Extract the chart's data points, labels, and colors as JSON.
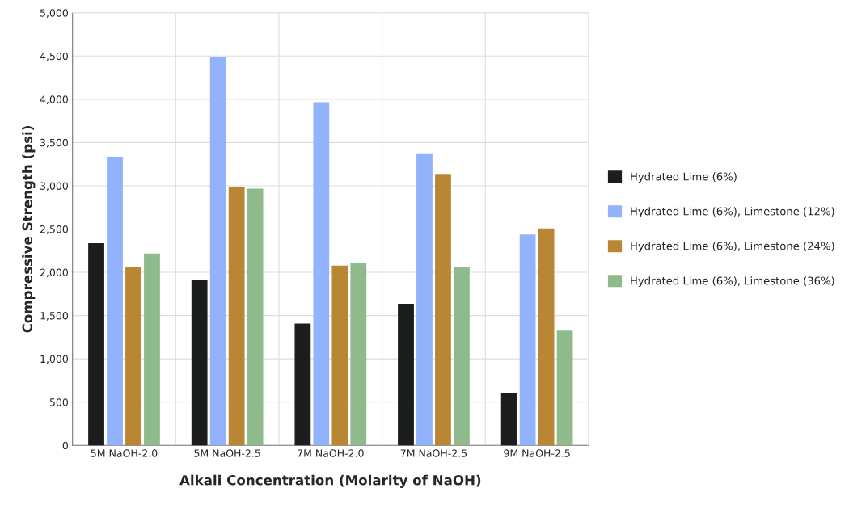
{
  "chart_data": {
    "type": "bar",
    "xlabel": "Alkali Concentration (Molarity of NaOH)",
    "ylabel": "Compressive Strength (psi)",
    "categories": [
      "5M NaOH-2.0",
      "5M NaOH-2.5",
      "7M NaOH-2.0",
      "7M NaOH-2.5",
      "9M NaOH-2.5"
    ],
    "series": [
      {
        "name": "Hydrated Lime (6%)",
        "color": "#1b1e1c",
        "values": [
          2330,
          1900,
          1400,
          1630,
          600
        ]
      },
      {
        "name": "Hydrated Lime (6%), Limestone (12%)",
        "color": "#92b2fb",
        "values": [
          3330,
          4480,
          3960,
          3370,
          2430
        ]
      },
      {
        "name": "Hydrated Lime (6%), Limestone (24%)",
        "color": "#b98733",
        "values": [
          2050,
          2980,
          2070,
          3130,
          2500
        ]
      },
      {
        "name": "Hydrated Lime (6%), Limestone (36%)",
        "color": "#8eba8c",
        "values": [
          2210,
          2960,
          2100,
          2050,
          1320
        ]
      }
    ],
    "ylim": [
      0,
      5000
    ],
    "yticks": [
      0,
      {
        "value": 500,
        "label": "500"
      },
      {
        "value": 1000,
        "label": "1,000"
      },
      {
        "value": 1500,
        "label": "1,500"
      },
      {
        "value": 2000,
        "label": "2,000"
      },
      {
        "value": 2500,
        "label": "2,500"
      },
      {
        "value": 3000,
        "label": "3,000"
      },
      {
        "value": 3500,
        "label": "3,500"
      },
      {
        "value": 4000,
        "label": "4,000"
      },
      {
        "value": 4500,
        "label": "4,500"
      },
      {
        "value": 5000,
        "label": "5,000"
      }
    ],
    "grid": true,
    "legend": "right"
  }
}
